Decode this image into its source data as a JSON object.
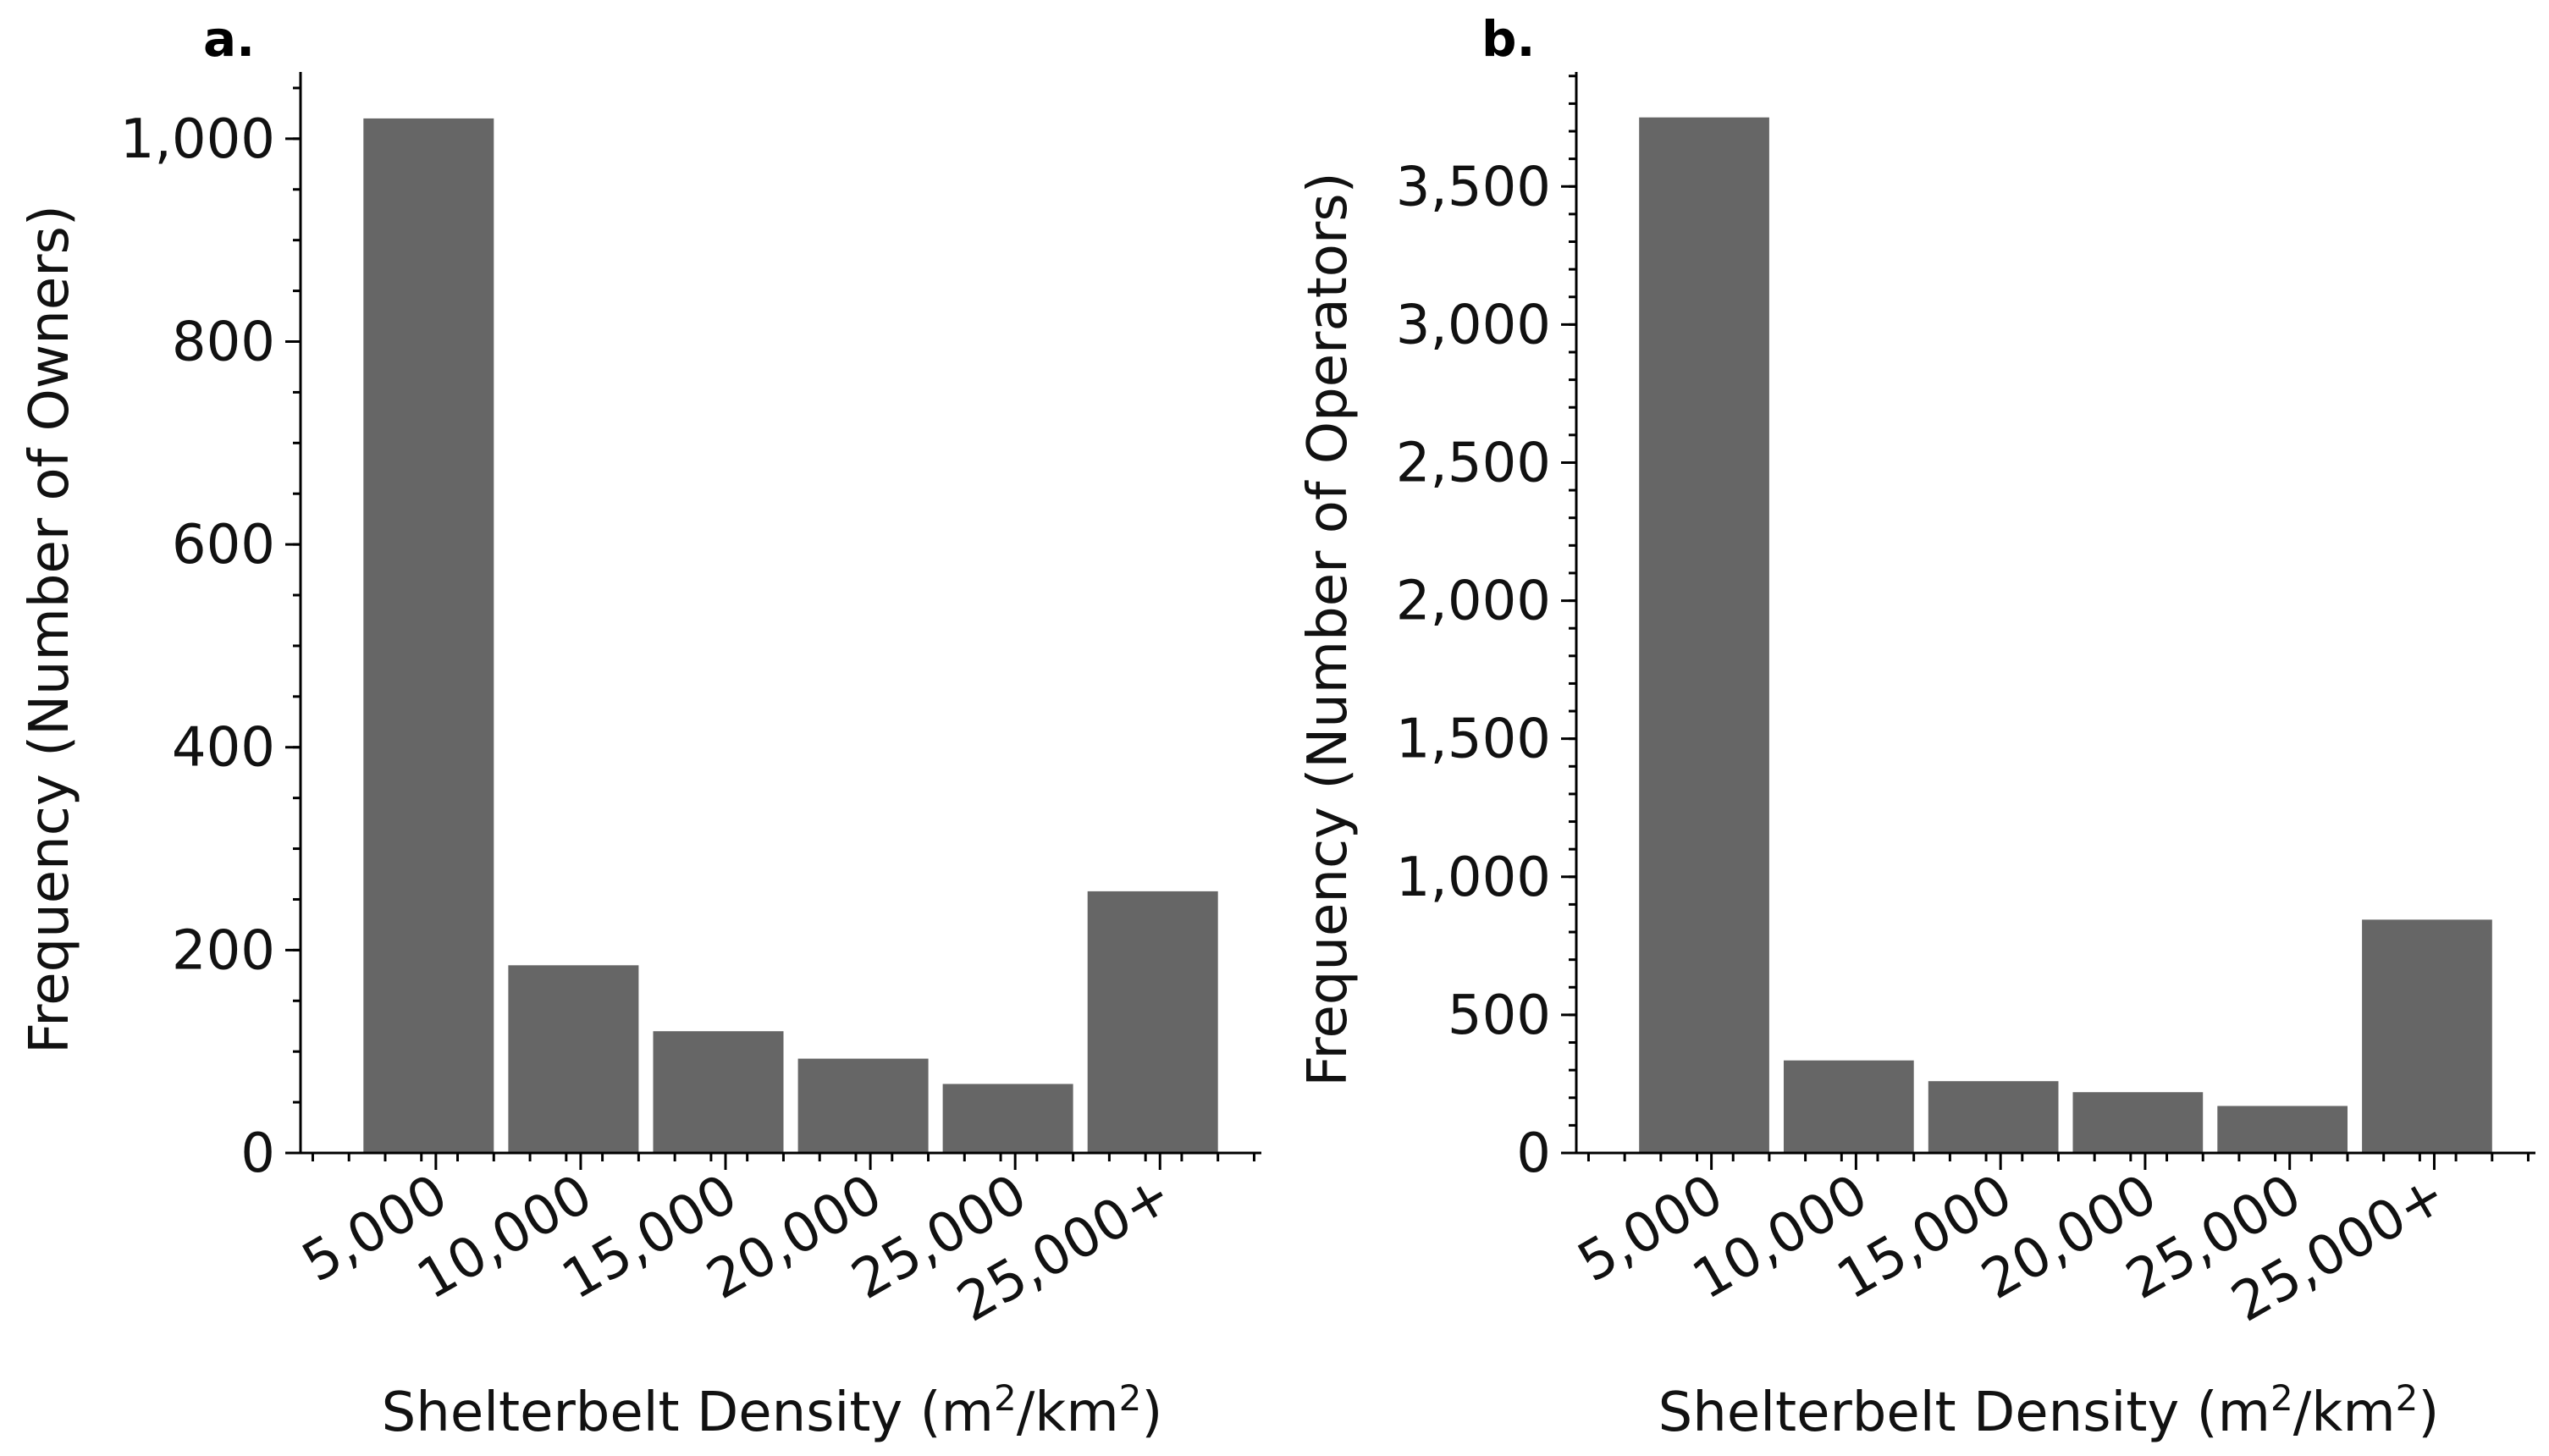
{
  "colors": {
    "bar": "#666666",
    "axis": "#000000",
    "background": "#ffffff"
  },
  "chart_data": [
    {
      "type": "bar",
      "panel_label": "a.",
      "categories": [
        "5,000",
        "10,000",
        "15,000",
        "20,000",
        "25,000",
        "25,000+"
      ],
      "values": [
        1020,
        185,
        120,
        93,
        68,
        258
      ],
      "ylabel": "Frequency (Number of Owners)",
      "xlabel_main": "Shelterbelt Density (m",
      "xlabel_sup1": "2",
      "xlabel_mid": "/km",
      "xlabel_sup2": "2",
      "xlabel_end": ")",
      "ylim": [
        0,
        1070
      ],
      "yticks": [
        0,
        200,
        400,
        600,
        800,
        1000
      ],
      "ytick_labels": [
        "0",
        "200",
        "400",
        "600",
        "800",
        "1,000"
      ],
      "minor_step": 50,
      "grid": false
    },
    {
      "type": "bar",
      "panel_label": "b.",
      "categories": [
        "5,000",
        "10,000",
        "15,000",
        "20,000",
        "25,000",
        "25,000+"
      ],
      "values": [
        3750,
        335,
        260,
        220,
        170,
        845
      ],
      "ylabel": "Frequency (Number of Operators)",
      "xlabel_main": "Shelterbelt Density (m",
      "xlabel_sup1": "2",
      "xlabel_mid": "/km",
      "xlabel_sup2": "2",
      "xlabel_end": ")",
      "ylim": [
        0,
        3930
      ],
      "yticks": [
        0,
        500,
        1000,
        1500,
        2000,
        2500,
        3000,
        3500
      ],
      "ytick_labels": [
        "0",
        "500",
        "1,000",
        "1,500",
        "2,000",
        "2,500",
        "3,000",
        "3,500"
      ],
      "minor_step": 100,
      "grid": false
    }
  ]
}
